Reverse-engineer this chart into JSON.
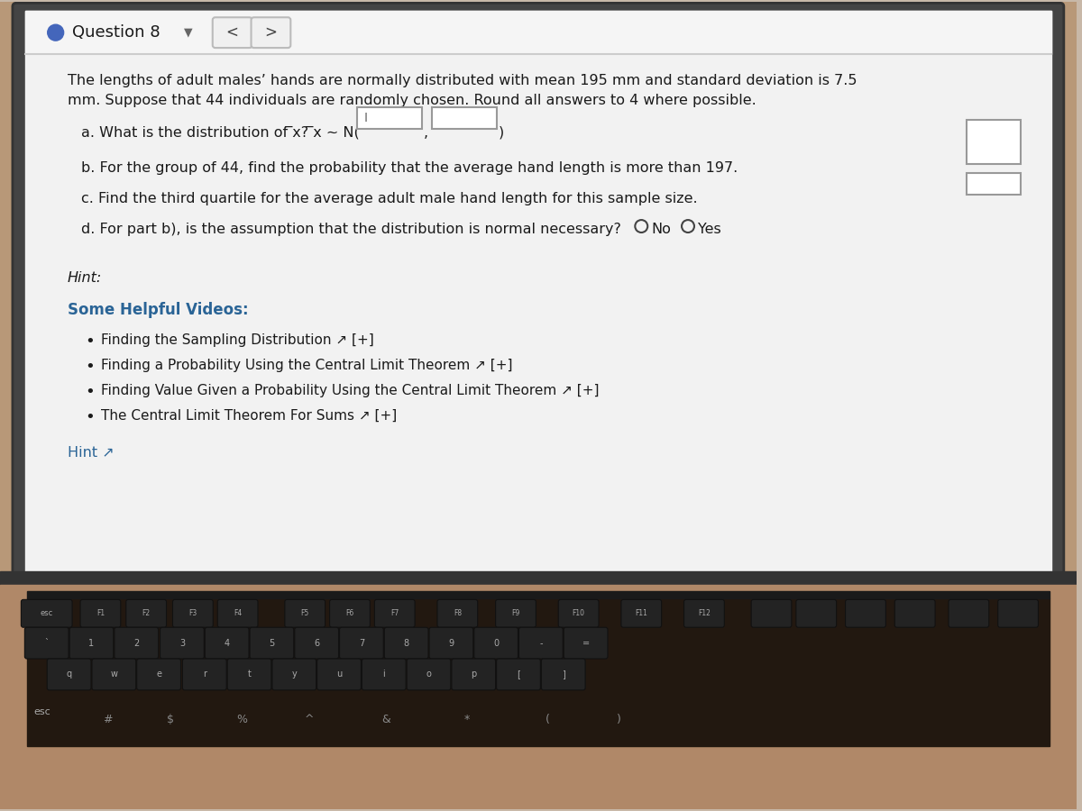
{
  "bg_color": "#c8b8a8",
  "screen_light_bg": "#f2f2f2",
  "header_bg": "#eeeeee",
  "text_color": "#1a1a1a",
  "link_color": "#2a6496",
  "helpful_color": "#2a6496",
  "hint_color": "#555555",
  "title_text": "Question 8",
  "problem_line1": "The lengths of adult males’ hands are normally distributed with mean 195 mm and standard deviation is 7.5",
  "problem_line2": "mm. Suppose that 44 individuals are randomly chosen. Round all answers to 4 where possible.",
  "part_a_prefix": "a. What is the distribution of ",
  "part_a_suffix": "? ",
  "part_a_dist": " ∼ N(",
  "part_b": "b. For the group of 44, find the probability that the average hand length is more than 197.",
  "part_c": "c. Find the third quartile for the average adult male hand length for this sample size.",
  "part_d": "d. For part b), is the assumption that the distribution is normal necessary?",
  "radio_no": "No",
  "radio_yes": "Yes",
  "hint_label": "Hint:",
  "some_helpful": "Some Helpful Videos:",
  "bullet1": "Finding the Sampling Distribution ↗ [+]",
  "bullet2": "Finding a Probability Using the Central Limit Theorem ↗ [+]",
  "bullet3": "Finding Value Given a Probability Using the Central Limit Theorem ↗ [+]",
  "bullet4": "The Central Limit Theorem For Sums ↗ [+]",
  "hint_link": "Hint ↗",
  "kbd_body_color": "#b89878",
  "kbd_dark_color": "#2a2018",
  "key_face_color": "#232323",
  "key_text_color": "#aaaaaa",
  "screen_border_color": "#888888"
}
